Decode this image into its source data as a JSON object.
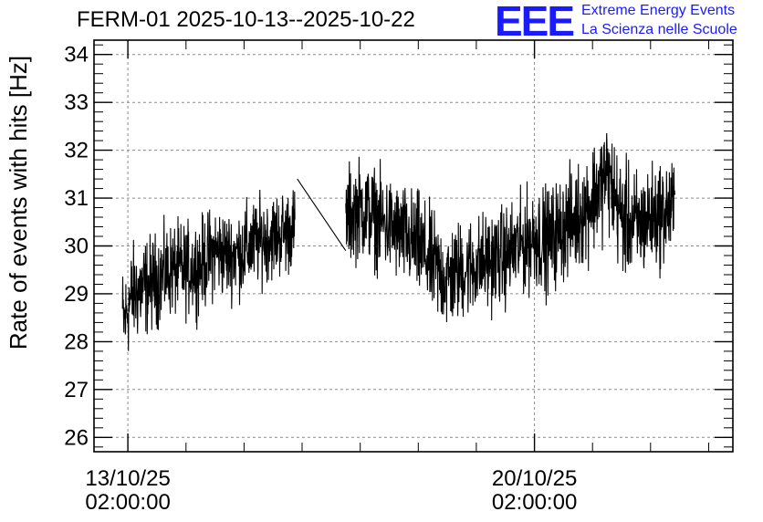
{
  "header": {
    "title": "FERM-01 2025-10-13--2025-10-22",
    "logo_text": "EEE",
    "logo_line1": "Extreme Energy Events",
    "logo_line2": "La Scienza nelle Scuole"
  },
  "colors": {
    "logo": "#1a1aff",
    "series": "#000000",
    "grid": "#8c8c8c"
  },
  "chart_data": {
    "type": "line",
    "title": "FERM-01 2025-10-13--2025-10-22",
    "ylabel": "Rate of events with hits [Hz]",
    "xlabel": "",
    "ylim": [
      25.7,
      34.3
    ],
    "yticks": [
      26,
      27,
      28,
      29,
      30,
      31,
      32,
      33,
      34
    ],
    "xlim": [
      "2025-10-12 12:00",
      "2025-10-23 12:00"
    ],
    "xticks": [
      {
        "x": "2025-10-13 02:00",
        "label_line1": "13/10/25",
        "label_line2": "02:00:00"
      },
      {
        "x": "2025-10-20 02:00",
        "label_line1": "20/10/25",
        "label_line2": "02:00:00"
      }
    ],
    "grid": true,
    "series": [
      {
        "segments": [
          {
            "points": [
              [
                "2025-10-12 23:45",
                28.6
              ],
              [
                "2025-10-13 00:30",
                28.4
              ],
              [
                "2025-10-13 02:00",
                28.7
              ],
              [
                "2025-10-13 04:00",
                29.0
              ],
              [
                "2025-10-13 08:00",
                29.1
              ],
              [
                "2025-10-13 14:00",
                29.3
              ],
              [
                "2025-10-13 20:00",
                29.5
              ],
              [
                "2025-10-14 02:00",
                29.5
              ],
              [
                "2025-10-14 08:00",
                29.6
              ],
              [
                "2025-10-14 14:00",
                29.9
              ],
              [
                "2025-10-14 20:00",
                29.8
              ],
              [
                "2025-10-15 02:00",
                29.9
              ],
              [
                "2025-10-15 08:00",
                30.1
              ],
              [
                "2025-10-15 14:00",
                30.2
              ],
              [
                "2025-10-15 20:00",
                30.3
              ],
              [
                "2025-10-15 23:00",
                30.4
              ]
            ],
            "spread": [
              1.4,
              1.4,
              1.5,
              1.5,
              1.5,
              1.4,
              1.4,
              1.4,
              1.4,
              1.4,
              1.3,
              1.4,
              1.3,
              1.3,
              1.3,
              1.2
            ]
          },
          {
            "points": [
              [
                "2025-10-16 00:00",
                31.4
              ],
              [
                "2025-10-16 20:00",
                29.9
              ]
            ],
            "spread": [
              0,
              0
            ]
          },
          {
            "points": [
              [
                "2025-10-16 20:00",
                30.6
              ],
              [
                "2025-10-17 02:00",
                30.8
              ],
              [
                "2025-10-17 08:00",
                30.6
              ],
              [
                "2025-10-17 14:00",
                30.4
              ],
              [
                "2025-10-17 20:00",
                30.2
              ],
              [
                "2025-10-18 02:00",
                30.0
              ],
              [
                "2025-10-18 08:00",
                29.6
              ],
              [
                "2025-10-18 14:00",
                29.3
              ],
              [
                "2025-10-18 20:00",
                29.5
              ],
              [
                "2025-10-19 02:00",
                29.6
              ],
              [
                "2025-10-19 08:00",
                29.7
              ],
              [
                "2025-10-19 14:00",
                29.8
              ],
              [
                "2025-10-19 20:00",
                30.0
              ],
              [
                "2025-10-20 02:00",
                30.2
              ],
              [
                "2025-10-20 08:00",
                30.1
              ],
              [
                "2025-10-20 14:00",
                30.4
              ],
              [
                "2025-10-20 20:00",
                30.6
              ],
              [
                "2025-10-21 02:00",
                31.0
              ],
              [
                "2025-10-21 08:00",
                31.5
              ],
              [
                "2025-10-21 14:00",
                30.6
              ],
              [
                "2025-10-21 20:00",
                30.4
              ],
              [
                "2025-10-22 02:00",
                30.6
              ],
              [
                "2025-10-22 08:00",
                30.7
              ],
              [
                "2025-10-22 12:00",
                30.8
              ]
            ],
            "spread": [
              1.5,
              1.5,
              1.5,
              1.5,
              1.5,
              1.6,
              1.6,
              1.6,
              1.5,
              1.5,
              1.5,
              1.5,
              1.5,
              1.6,
              1.6,
              1.6,
              1.6,
              1.7,
              1.7,
              1.7,
              1.7,
              1.6,
              1.6,
              1.5
            ]
          }
        ]
      }
    ]
  }
}
